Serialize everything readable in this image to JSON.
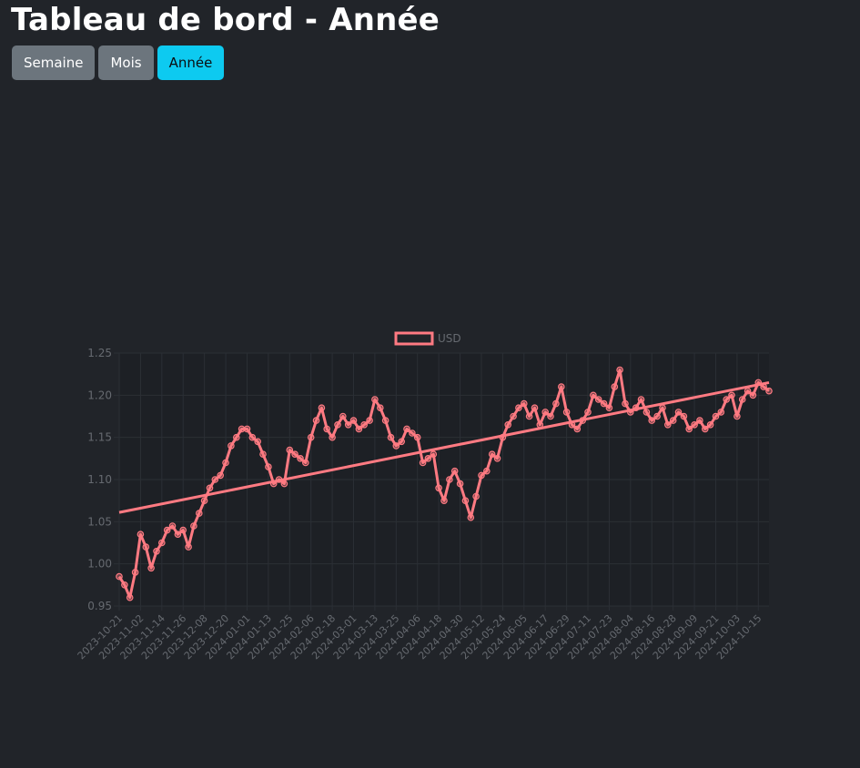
{
  "header": {
    "title": "Tableau de bord - Année"
  },
  "period_buttons": [
    {
      "label": "Semaine",
      "active": false
    },
    {
      "label": "Mois",
      "active": false
    },
    {
      "label": "Année",
      "active": true
    }
  ],
  "colors": {
    "background": "#212429",
    "series": "#ff7a82",
    "active_button": "#0dcaf0",
    "inactive_button": "#6c757d",
    "grid": "#2b2f35",
    "tick_text": "#666a70"
  },
  "chart_data": {
    "type": "line",
    "legend": {
      "position": "top",
      "entries": [
        "USD"
      ]
    },
    "grid": true,
    "ylim": [
      0.95,
      1.25
    ],
    "y_ticks": [
      0.95,
      1.0,
      1.05,
      1.1,
      1.15,
      1.2,
      1.25
    ],
    "x_range": [
      "2023-10-21",
      "2024-10-21"
    ],
    "x_tick_labels": [
      "2023-10-21",
      "2023-11-02",
      "2023-11-14",
      "2023-11-26",
      "2023-12-08",
      "2023-12-20",
      "2024-01-01",
      "2024-01-13",
      "2024-01-25",
      "2024-02-06",
      "2024-02-18",
      "2024-03-01",
      "2024-03-13",
      "2024-03-25",
      "2024-04-06",
      "2024-04-18",
      "2024-04-30",
      "2024-05-12",
      "2024-05-24",
      "2024-06-05",
      "2024-06-17",
      "2024-06-29",
      "2024-07-11",
      "2024-07-23",
      "2024-08-04",
      "2024-08-16",
      "2024-08-28",
      "2024-09-09",
      "2024-09-21",
      "2024-10-03",
      "2024-10-15"
    ],
    "series": [
      {
        "name": "USD",
        "x": [
          "2023-10-21",
          "2023-10-24",
          "2023-10-27",
          "2023-10-30",
          "2023-11-02",
          "2023-11-05",
          "2023-11-08",
          "2023-11-11",
          "2023-11-14",
          "2023-11-17",
          "2023-11-20",
          "2023-11-23",
          "2023-11-26",
          "2023-11-29",
          "2023-12-02",
          "2023-12-05",
          "2023-12-08",
          "2023-12-11",
          "2023-12-14",
          "2023-12-17",
          "2023-12-20",
          "2023-12-23",
          "2023-12-26",
          "2023-12-29",
          "2024-01-01",
          "2024-01-04",
          "2024-01-07",
          "2024-01-10",
          "2024-01-13",
          "2024-01-16",
          "2024-01-19",
          "2024-01-22",
          "2024-01-25",
          "2024-01-28",
          "2024-01-31",
          "2024-02-03",
          "2024-02-06",
          "2024-02-09",
          "2024-02-12",
          "2024-02-15",
          "2024-02-18",
          "2024-02-21",
          "2024-02-24",
          "2024-02-27",
          "2024-03-01",
          "2024-03-04",
          "2024-03-07",
          "2024-03-10",
          "2024-03-13",
          "2024-03-16",
          "2024-03-19",
          "2024-03-22",
          "2024-03-25",
          "2024-03-28",
          "2024-03-31",
          "2024-04-03",
          "2024-04-06",
          "2024-04-09",
          "2024-04-12",
          "2024-04-15",
          "2024-04-18",
          "2024-04-21",
          "2024-04-24",
          "2024-04-27",
          "2024-04-30",
          "2024-05-03",
          "2024-05-06",
          "2024-05-09",
          "2024-05-12",
          "2024-05-15",
          "2024-05-18",
          "2024-05-21",
          "2024-05-24",
          "2024-05-27",
          "2024-05-30",
          "2024-06-02",
          "2024-06-05",
          "2024-06-08",
          "2024-06-11",
          "2024-06-14",
          "2024-06-17",
          "2024-06-20",
          "2024-06-23",
          "2024-06-26",
          "2024-06-29",
          "2024-07-02",
          "2024-07-05",
          "2024-07-08",
          "2024-07-11",
          "2024-07-14",
          "2024-07-17",
          "2024-07-20",
          "2024-07-23",
          "2024-07-26",
          "2024-07-29",
          "2024-08-01",
          "2024-08-04",
          "2024-08-07",
          "2024-08-10",
          "2024-08-13",
          "2024-08-16",
          "2024-08-19",
          "2024-08-22",
          "2024-08-25",
          "2024-08-28",
          "2024-08-31",
          "2024-09-03",
          "2024-09-06",
          "2024-09-09",
          "2024-09-12",
          "2024-09-15",
          "2024-09-18",
          "2024-09-21",
          "2024-09-24",
          "2024-09-27",
          "2024-09-30",
          "2024-10-03",
          "2024-10-06",
          "2024-10-09",
          "2024-10-12",
          "2024-10-15",
          "2024-10-18",
          "2024-10-21"
        ],
        "values": [
          0.985,
          0.975,
          0.96,
          0.99,
          1.035,
          1.02,
          0.995,
          1.015,
          1.025,
          1.04,
          1.045,
          1.035,
          1.04,
          1.02,
          1.045,
          1.06,
          1.075,
          1.09,
          1.1,
          1.105,
          1.12,
          1.14,
          1.15,
          1.16,
          1.16,
          1.15,
          1.145,
          1.13,
          1.115,
          1.095,
          1.1,
          1.095,
          1.135,
          1.13,
          1.125,
          1.12,
          1.15,
          1.17,
          1.185,
          1.16,
          1.15,
          1.165,
          1.175,
          1.165,
          1.17,
          1.16,
          1.165,
          1.17,
          1.195,
          1.185,
          1.17,
          1.15,
          1.14,
          1.145,
          1.16,
          1.155,
          1.15,
          1.12,
          1.125,
          1.13,
          1.09,
          1.075,
          1.1,
          1.11,
          1.095,
          1.075,
          1.055,
          1.08,
          1.105,
          1.11,
          1.13,
          1.125,
          1.15,
          1.165,
          1.175,
          1.185,
          1.19,
          1.175,
          1.185,
          1.165,
          1.18,
          1.175,
          1.19,
          1.21,
          1.18,
          1.165,
          1.16,
          1.17,
          1.18,
          1.2,
          1.195,
          1.19,
          1.185,
          1.21,
          1.23,
          1.19,
          1.18,
          1.185,
          1.195,
          1.18,
          1.17,
          1.175,
          1.185,
          1.165,
          1.17,
          1.18,
          1.175,
          1.16,
          1.165,
          1.17,
          1.16,
          1.165,
          1.175,
          1.18,
          1.195,
          1.2,
          1.175,
          1.195,
          1.205,
          1.2,
          1.215,
          1.21,
          1.205
        ]
      }
    ],
    "trendline": {
      "start": [
        "2023-10-21",
        1.061
      ],
      "end": [
        "2024-10-21",
        1.215
      ]
    }
  }
}
